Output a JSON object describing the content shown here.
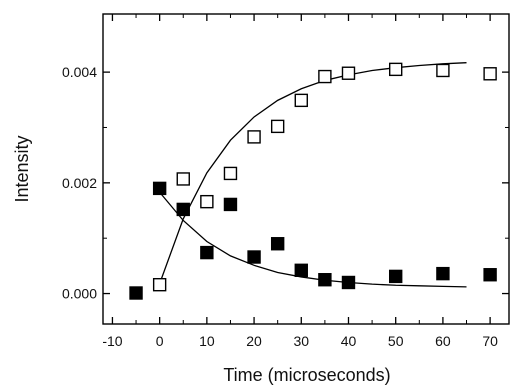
{
  "chart_data": {
    "type": "scatter",
    "title": "",
    "xlabel": "Time (microseconds)",
    "ylabel": "Intensity",
    "xlim": [
      -12,
      74
    ],
    "ylim": [
      -0.00055,
      0.00505
    ],
    "x_ticks": [
      -10,
      0,
      10,
      20,
      30,
      40,
      50,
      60,
      70
    ],
    "x_tick_labels": [
      "-10",
      "0",
      "10",
      "20",
      "30",
      "40",
      "50",
      "60",
      "70"
    ],
    "y_ticks": [
      0.0,
      0.002,
      0.004
    ],
    "y_tick_labels": [
      "0.000",
      "0.002",
      "0.004"
    ],
    "grid": false,
    "legend": "none",
    "series": [
      {
        "marker": "open-square",
        "color": "#000000",
        "x": [
          0,
          5,
          10,
          15,
          20,
          25,
          30,
          35,
          40,
          50,
          60,
          70
        ],
        "y": [
          0.00016,
          0.00207,
          0.00166,
          0.00217,
          0.00283,
          0.00302,
          0.00349,
          0.00392,
          0.00398,
          0.00405,
          0.00403,
          0.00397
        ],
        "fit": {
          "model": "exponential rise",
          "x": [
            0,
            5,
            10,
            15,
            20,
            25,
            30,
            35,
            40,
            45,
            50,
            55,
            60,
            65
          ],
          "y": [
            0.00018,
            0.00135,
            0.00218,
            0.00277,
            0.00319,
            0.00349,
            0.0037,
            0.00385,
            0.00395,
            0.00403,
            0.00408,
            0.00412,
            0.00415,
            0.00417
          ]
        }
      },
      {
        "marker": "filled-square",
        "color": "#000000",
        "x": [
          -5,
          0,
          5,
          10,
          15,
          20,
          25,
          30,
          35,
          40,
          50,
          60,
          70
        ],
        "y": [
          1e-05,
          0.0019,
          0.00152,
          0.00074,
          0.00161,
          0.00066,
          0.0009,
          0.00042,
          0.00025,
          0.0002,
          0.00031,
          0.00036,
          0.00034
        ],
        "fit": {
          "model": "exponential decay",
          "x": [
            0,
            5,
            10,
            15,
            20,
            25,
            30,
            35,
            40,
            45,
            50,
            55,
            60,
            65
          ],
          "y": [
            0.00183,
            0.00132,
            0.00094,
            0.00068,
            0.00051,
            0.00038,
            0.0003,
            0.00024,
            0.0002,
            0.00017,
            0.00015,
            0.00014,
            0.00013,
            0.00012
          ]
        }
      }
    ]
  }
}
